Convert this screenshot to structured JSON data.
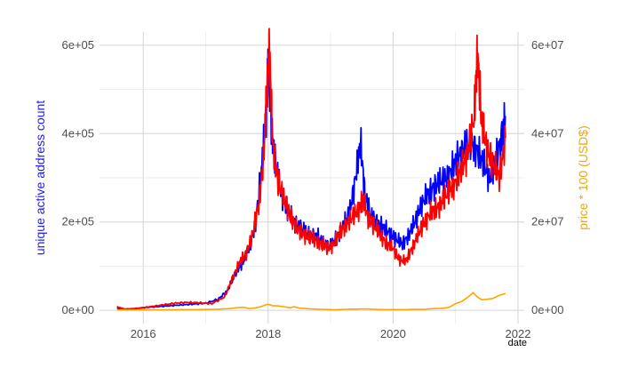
{
  "chart_data": {
    "type": "line",
    "xlabel": "date",
    "ylabel_left": "unique active address count",
    "ylabel_right": "price * 100 (USD$)",
    "x_ticks": [
      "2016",
      "2018",
      "2020",
      "2022"
    ],
    "x_range": [
      2015.3,
      2022.1
    ],
    "y_left_ticks": [
      "0e+00",
      "2e+05",
      "4e+05",
      "6e+05"
    ],
    "y_left_range": [
      -30000,
      630000
    ],
    "y_right_ticks": [
      "0e+00",
      "2e+07",
      "4e+07",
      "6e+07"
    ],
    "y_right_range": [
      -3000000,
      63000000
    ],
    "grid": true,
    "colors": {
      "left_axis_title": "#1a1aff",
      "right_axis_title": "#e6a817",
      "tick_text": "#4d4d4d",
      "grid": "#d4d4d4"
    },
    "series": [
      {
        "axis": "left",
        "color": "#0000ff",
        "x": [
          2015.58,
          2015.65,
          2015.8,
          2016.0,
          2016.2,
          2016.4,
          2016.6,
          2016.8,
          2017.0,
          2017.2,
          2017.35,
          2017.5,
          2017.6,
          2017.7,
          2017.8,
          2017.9,
          2017.97,
          2018.0,
          2018.05,
          2018.12,
          2018.2,
          2018.3,
          2018.4,
          2018.5,
          2018.6,
          2018.7,
          2018.8,
          2018.9,
          2019.0,
          2019.1,
          2019.2,
          2019.3,
          2019.4,
          2019.48,
          2019.55,
          2019.65,
          2019.75,
          2019.85,
          2019.95,
          2020.05,
          2020.15,
          2020.25,
          2020.35,
          2020.45,
          2020.55,
          2020.65,
          2020.75,
          2020.85,
          2020.95,
          2021.05,
          2021.15,
          2021.25,
          2021.35,
          2021.45,
          2021.55,
          2021.65,
          2021.75,
          2021.8
        ],
        "y": [
          5000,
          2000,
          3000,
          6000,
          8000,
          10000,
          12000,
          14000,
          16000,
          25000,
          45000,
          90000,
          110000,
          140000,
          200000,
          330000,
          450000,
          560000,
          420000,
          330000,
          270000,
          230000,
          200000,
          190000,
          175000,
          170000,
          165000,
          150000,
          145000,
          165000,
          190000,
          220000,
          300000,
          380000,
          260000,
          210000,
          200000,
          185000,
          175000,
          160000,
          150000,
          170000,
          200000,
          240000,
          260000,
          280000,
          290000,
          300000,
          320000,
          350000,
          370000,
          380000,
          360000,
          330000,
          300000,
          340000,
          400000,
          440000
        ]
      },
      {
        "axis": "left",
        "color": "#ff0000",
        "x": [
          2015.58,
          2015.7,
          2015.9,
          2016.1,
          2016.3,
          2016.5,
          2016.7,
          2016.9,
          2017.1,
          2017.3,
          2017.45,
          2017.55,
          2017.65,
          2017.75,
          2017.85,
          2017.93,
          2017.98,
          2018.02,
          2018.07,
          2018.15,
          2018.25,
          2018.35,
          2018.45,
          2018.55,
          2018.65,
          2018.75,
          2018.85,
          2018.95,
          2019.05,
          2019.15,
          2019.25,
          2019.35,
          2019.45,
          2019.52,
          2019.6,
          2019.7,
          2019.8,
          2019.9,
          2020.0,
          2020.1,
          2020.2,
          2020.3,
          2020.4,
          2020.5,
          2020.6,
          2020.7,
          2020.8,
          2020.9,
          2021.0,
          2021.1,
          2021.2,
          2021.3,
          2021.35,
          2021.42,
          2021.5,
          2021.6,
          2021.7,
          2021.8
        ],
        "y": [
          8000,
          3000,
          4000,
          8000,
          12000,
          16000,
          18000,
          17000,
          15000,
          30000,
          80000,
          110000,
          130000,
          170000,
          240000,
          350000,
          500000,
          590000,
          380000,
          300000,
          250000,
          220000,
          185000,
          175000,
          165000,
          160000,
          150000,
          140000,
          150000,
          175000,
          195000,
          210000,
          230000,
          250000,
          210000,
          190000,
          170000,
          150000,
          140000,
          115000,
          110000,
          140000,
          170000,
          200000,
          220000,
          230000,
          250000,
          270000,
          290000,
          320000,
          360000,
          440000,
          590000,
          420000,
          370000,
          330000,
          300000,
          390000
        ]
      },
      {
        "axis": "right",
        "color": "#ffa500",
        "x": [
          2015.58,
          2015.8,
          2016.0,
          2016.2,
          2016.4,
          2016.6,
          2016.8,
          2017.0,
          2017.2,
          2017.4,
          2017.5,
          2017.6,
          2017.7,
          2017.8,
          2017.9,
          2017.97,
          2018.02,
          2018.08,
          2018.15,
          2018.25,
          2018.35,
          2018.42,
          2018.5,
          2018.6,
          2018.7,
          2018.8,
          2018.9,
          2019.0,
          2019.1,
          2019.2,
          2019.3,
          2019.4,
          2019.5,
          2019.6,
          2019.7,
          2019.8,
          2019.9,
          2020.0,
          2020.1,
          2020.2,
          2020.3,
          2020.4,
          2020.5,
          2020.6,
          2020.7,
          2020.8,
          2020.9,
          2021.0,
          2021.1,
          2021.15,
          2021.2,
          2021.28,
          2021.35,
          2021.42,
          2021.5,
          2021.6,
          2021.7,
          2021.8
        ],
        "y": [
          100000,
          80000,
          100000,
          120000,
          130000,
          150000,
          150000,
          180000,
          250000,
          400000,
          600000,
          700000,
          400000,
          550000,
          900000,
          1300000,
          1300000,
          1000000,
          1000000,
          800000,
          600000,
          800000,
          500000,
          400000,
          300000,
          250000,
          200000,
          150000,
          130000,
          200000,
          250000,
          250000,
          300000,
          300000,
          200000,
          150000,
          150000,
          170000,
          150000,
          150000,
          200000,
          200000,
          200000,
          350000,
          400000,
          450000,
          700000,
          1500000,
          2000000,
          2500000,
          3000000,
          4000000,
          3000000,
          2400000,
          2500000,
          2700000,
          3400000,
          3800000
        ]
      }
    ]
  }
}
